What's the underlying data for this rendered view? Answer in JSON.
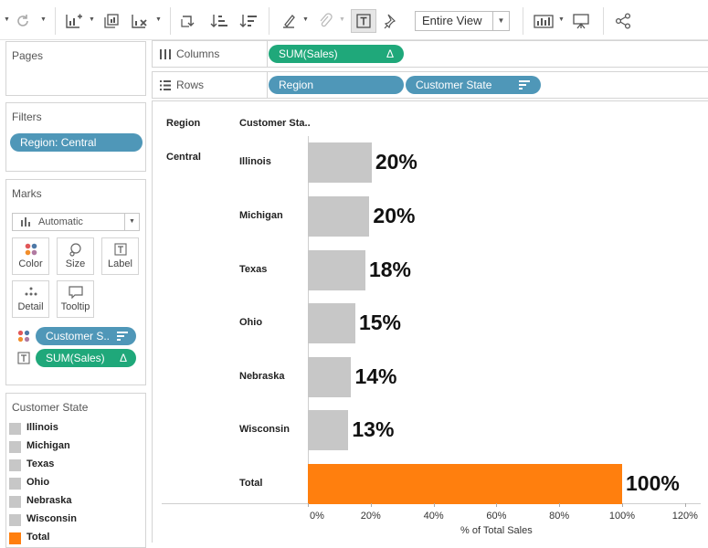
{
  "toolbar": {
    "view_select": "Entire View",
    "icons": [
      "refresh-icon",
      "new-worksheet-icon",
      "duplicate-icon",
      "clear-sheet-icon",
      "swap-icon",
      "sort-ascending-icon",
      "sort-descending-icon",
      "highlight-icon",
      "group-icon",
      "show-labels-icon",
      "pin-icon",
      "show-me-icon",
      "presentation-icon",
      "share-icon"
    ]
  },
  "pages": {
    "title": "Pages"
  },
  "filters": {
    "title": "Filters",
    "pill": "Region: Central"
  },
  "marks": {
    "title": "Marks",
    "type_select": "Automatic",
    "buttons": {
      "color": "Color",
      "size": "Size",
      "label": "Label",
      "detail": "Detail",
      "tooltip": "Tooltip"
    },
    "pills": [
      {
        "text": "Customer S..",
        "color": "#4f97b8"
      },
      {
        "text": "SUM(Sales)",
        "glyph": "Δ",
        "color": "#1fa87a"
      }
    ]
  },
  "legend": {
    "title": "Customer State",
    "items": [
      {
        "label": "Illinois",
        "color": "#c7c7c7"
      },
      {
        "label": "Michigan",
        "color": "#c7c7c7"
      },
      {
        "label": "Texas",
        "color": "#c7c7c7"
      },
      {
        "label": "Ohio",
        "color": "#c7c7c7"
      },
      {
        "label": "Nebraska",
        "color": "#c7c7c7"
      },
      {
        "label": "Wisconsin",
        "color": "#c7c7c7"
      },
      {
        "label": "Total",
        "color": "#ff7f0e"
      }
    ]
  },
  "shelves": {
    "columns": {
      "label": "Columns",
      "pills": [
        {
          "text": "SUM(Sales)",
          "glyph": "Δ"
        }
      ]
    },
    "rows": {
      "label": "Rows",
      "pills": [
        {
          "text": "Region"
        },
        {
          "text": "Customer State"
        }
      ]
    }
  },
  "chart_data": {
    "type": "bar",
    "orientation": "horizontal",
    "headers": {
      "region": "Region",
      "state": "Customer Sta.."
    },
    "region": "Central",
    "categories": [
      "Illinois",
      "Michigan",
      "Texas",
      "Ohio",
      "Nebraska",
      "Wisconsin",
      "Total"
    ],
    "values": [
      20.3,
      19.6,
      18.3,
      15.1,
      13.8,
      12.9,
      100
    ],
    "labels": [
      "20%",
      "20%",
      "18%",
      "15%",
      "14%",
      "13%",
      "100%"
    ],
    "colors": [
      "#c7c7c7",
      "#c7c7c7",
      "#c7c7c7",
      "#c7c7c7",
      "#c7c7c7",
      "#c7c7c7",
      "#ff7f0e"
    ],
    "xlabel": "% of Total Sales",
    "xlim": [
      0,
      120
    ],
    "xticks": [
      "0%",
      "20%",
      "40%",
      "60%",
      "80%",
      "100%",
      "120%"
    ]
  }
}
